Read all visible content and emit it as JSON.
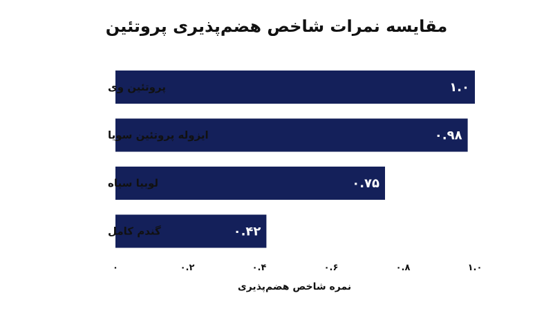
{
  "chart_data": {
    "type": "bar",
    "orientation": "horizontal",
    "title": "مقایسه نمرات شاخص هضم‌پذیری پروتئین",
    "xlabel": "نمره شاخص هضم‌پذیری",
    "ylabel": "",
    "categories": [
      "پروتئین وی",
      "ایزوله پروتئین سویا",
      "لوبیا سیاه",
      "گندم کامل"
    ],
    "values": [
      1.0,
      0.98,
      0.75,
      0.42
    ],
    "value_labels": [
      "۱.۰",
      "۰.۹۸",
      "۰.۷۵",
      "۰.۴۲"
    ],
    "xlim": [
      0,
      1.0
    ],
    "x_ticks": [
      0,
      0.2,
      0.4,
      0.6,
      0.8,
      1.0
    ],
    "x_tick_labels": [
      "۰",
      "۰.۲",
      "۰.۴",
      "۰.۶",
      "۰.۸",
      "۱.۰"
    ],
    "grid": false,
    "legend": "none",
    "bar_color": "#14205a",
    "value_label_color": "#ffffff",
    "text_color": "#111111"
  }
}
